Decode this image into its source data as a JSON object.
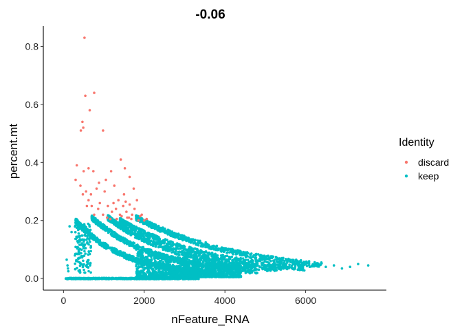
{
  "chart_data": {
    "type": "scatter",
    "title": "-0.06",
    "xlabel": "nFeature_RNA",
    "ylabel": "percent.mt",
    "xlim": [
      -500,
      8000
    ],
    "ylim": [
      -0.04,
      0.87
    ],
    "xticks": [
      0,
      2000,
      4000,
      6000
    ],
    "yticks": [
      0.0,
      0.2,
      0.4,
      0.6,
      0.8
    ],
    "xtick_labels": [
      "0",
      "2000",
      "4000",
      "6000"
    ],
    "ytick_labels": [
      "0.0",
      "0.2",
      "0.4",
      "0.6",
      "0.8"
    ],
    "grid": false,
    "legend": {
      "title": "Identity",
      "position": "right",
      "entries": [
        {
          "label": "discard",
          "color": "#F8766D"
        },
        {
          "label": "keep",
          "color": "#00BFC4"
        }
      ]
    },
    "series": [
      {
        "name": "discard",
        "color": "#F8766D",
        "points": [
          [
            520,
            0.83
          ],
          [
            760,
            0.64
          ],
          [
            540,
            0.63
          ],
          [
            650,
            0.58
          ],
          [
            470,
            0.54
          ],
          [
            490,
            0.52
          ],
          [
            430,
            0.51
          ],
          [
            980,
            0.51
          ],
          [
            1420,
            0.41
          ],
          [
            330,
            0.39
          ],
          [
            500,
            0.37
          ],
          [
            620,
            0.38
          ],
          [
            740,
            0.37
          ],
          [
            1180,
            0.37
          ],
          [
            1520,
            0.38
          ],
          [
            1640,
            0.35
          ],
          [
            880,
            0.33
          ],
          [
            1050,
            0.34
          ],
          [
            300,
            0.34
          ],
          [
            420,
            0.32
          ],
          [
            560,
            0.3
          ],
          [
            680,
            0.29
          ],
          [
            820,
            0.31
          ],
          [
            1260,
            0.32
          ],
          [
            1740,
            0.31
          ],
          [
            1820,
            0.27
          ],
          [
            1360,
            0.27
          ],
          [
            1500,
            0.29
          ],
          [
            620,
            0.27
          ],
          [
            700,
            0.25
          ],
          [
            900,
            0.26
          ],
          [
            1100,
            0.25
          ],
          [
            1200,
            0.23
          ],
          [
            1300,
            0.24
          ],
          [
            1400,
            0.22
          ],
          [
            1480,
            0.25
          ],
          [
            1560,
            0.23
          ],
          [
            1620,
            0.21
          ],
          [
            1700,
            0.22
          ],
          [
            1760,
            0.24
          ],
          [
            1860,
            0.2
          ],
          [
            1940,
            0.22
          ],
          [
            2000,
            0.2
          ],
          [
            1080,
            0.21
          ],
          [
            980,
            0.22
          ],
          [
            860,
            0.24
          ],
          [
            760,
            0.22
          ],
          [
            1160,
            0.205
          ],
          [
            1320,
            0.205
          ],
          [
            1440,
            0.215
          ],
          [
            1580,
            0.21
          ],
          [
            1680,
            0.205
          ],
          [
            1900,
            0.215
          ],
          [
            2060,
            0.205
          ],
          [
            1240,
            0.26
          ],
          [
            1540,
            0.265
          ],
          [
            1640,
            0.255
          ],
          [
            480,
            0.29
          ],
          [
            580,
            0.25
          ],
          [
            1020,
            0.3
          ]
        ]
      },
      {
        "name": "keep",
        "color": "#00BFC4",
        "points": [
          [
            7550,
            0.045
          ],
          [
            7300,
            0.05
          ],
          [
            7100,
            0.04
          ],
          [
            6900,
            0.035
          ],
          [
            6700,
            0.045
          ],
          [
            6500,
            0.04
          ],
          [
            6300,
            0.05
          ],
          [
            6100,
            0.04
          ],
          [
            5900,
            0.045
          ],
          [
            5700,
            0.06
          ],
          [
            5500,
            0.05
          ],
          [
            5300,
            0.07
          ],
          [
            5100,
            0.065
          ],
          [
            4900,
            0.08
          ],
          [
            4700,
            0.075
          ],
          [
            4500,
            0.09
          ],
          [
            80,
            0.065
          ],
          [
            100,
            0.045
          ],
          [
            120,
            0.025
          ],
          [
            150,
            0.18
          ],
          [
            200,
            0.16
          ],
          [
            110,
            0.035
          ]
        ]
      }
    ]
  }
}
